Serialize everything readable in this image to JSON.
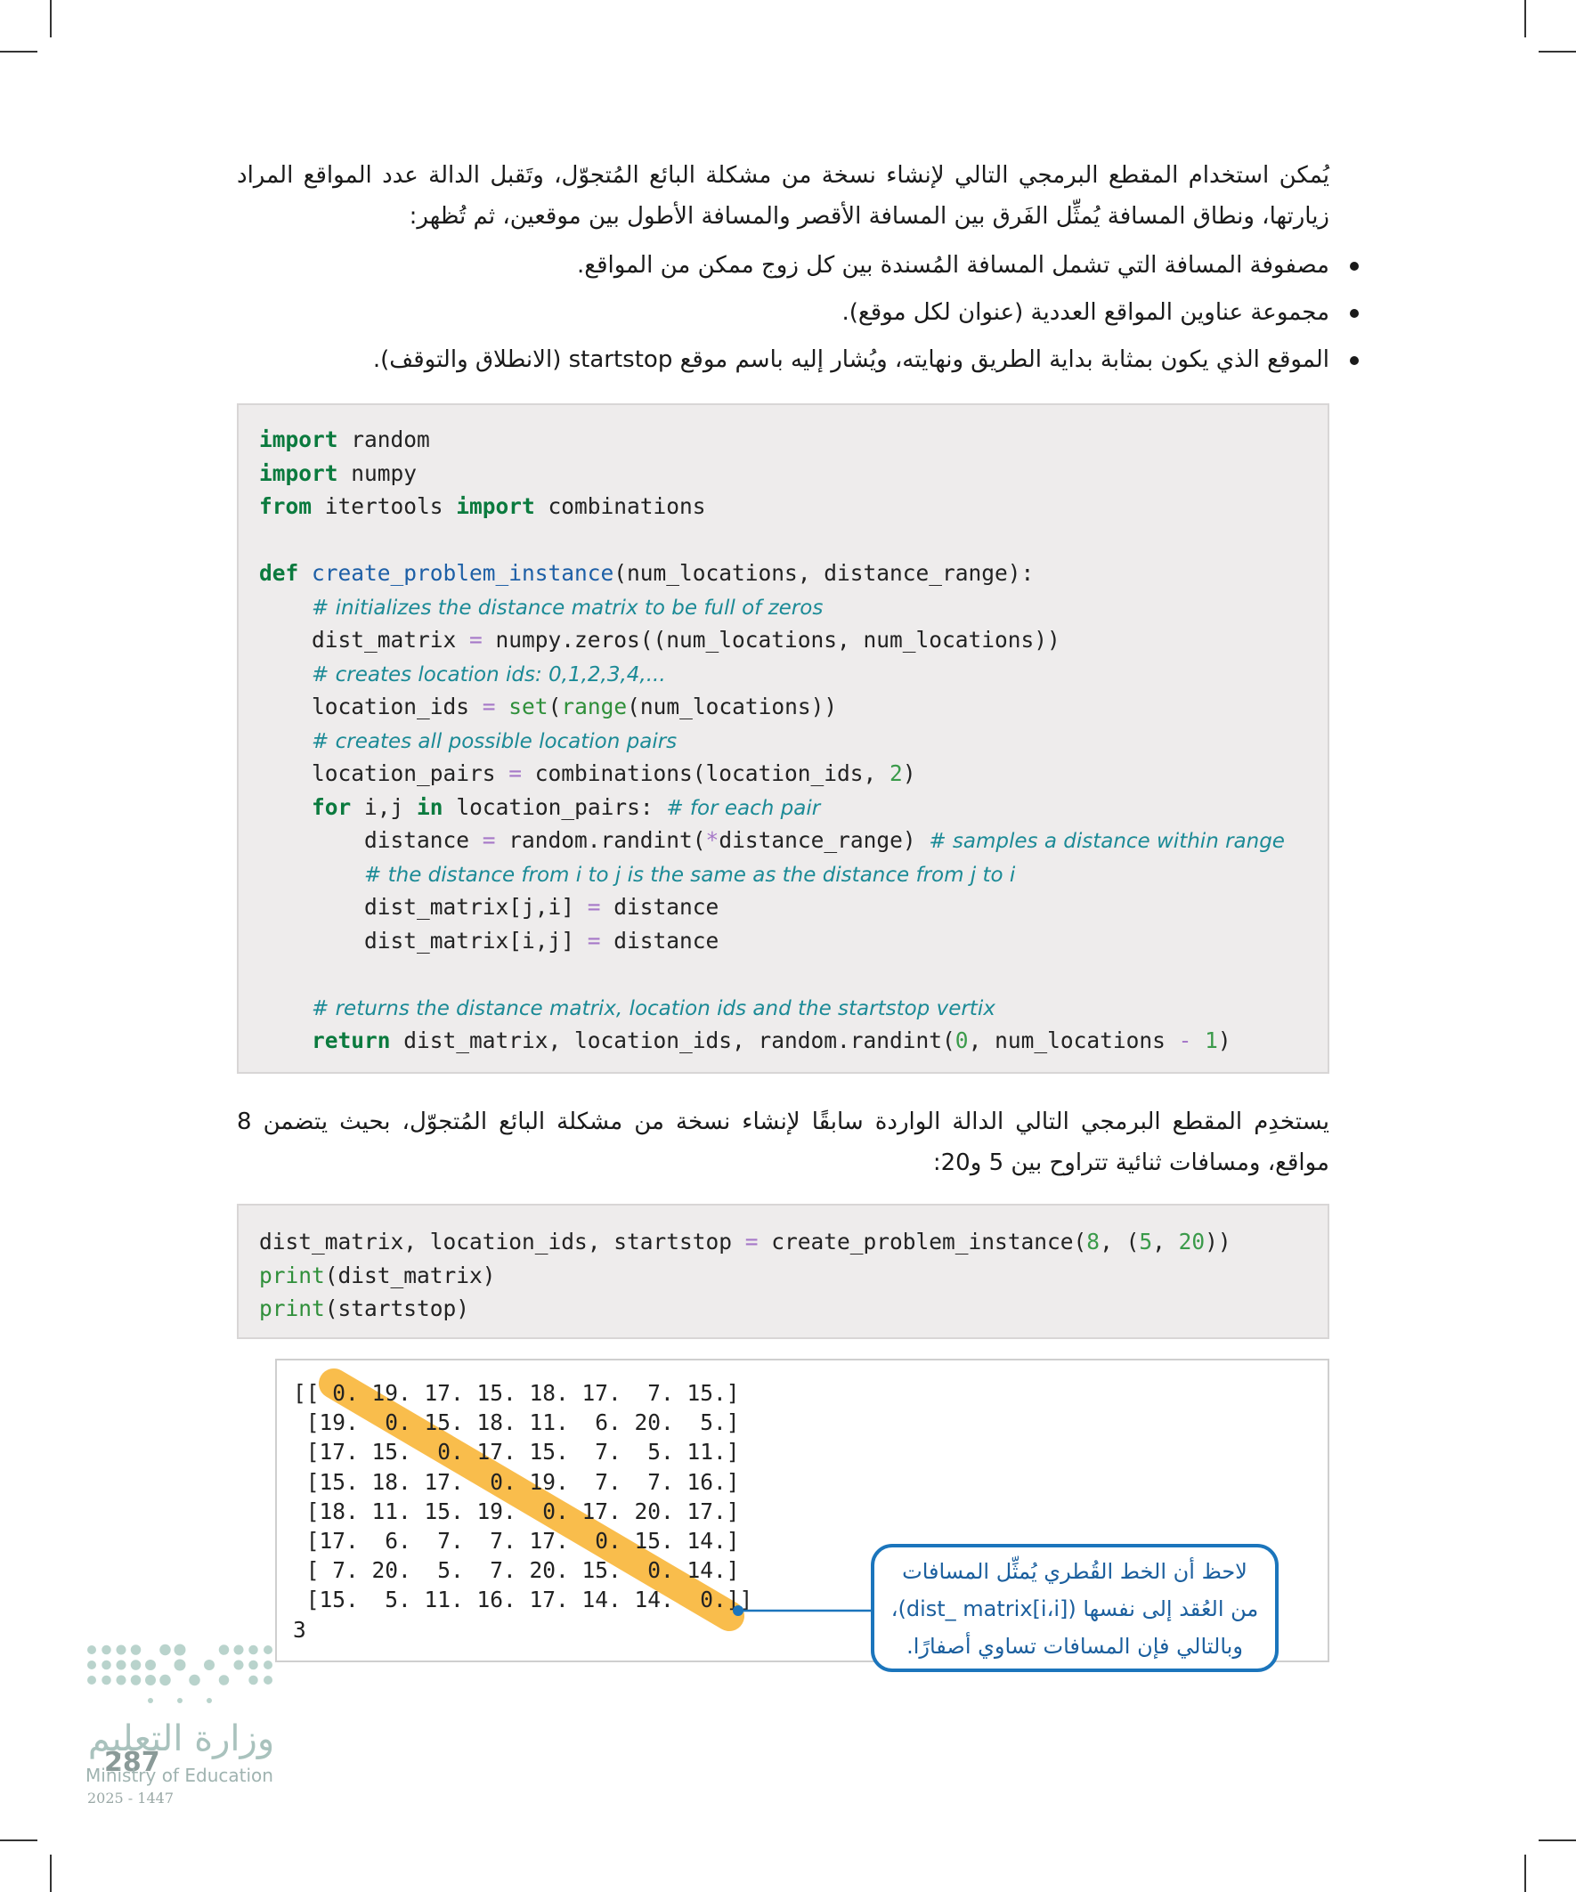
{
  "paragraph_1": "يُمكن استخدام المقطع البرمجي التالي لإنشاء نسخة من مشكلة البائع المُتجوّل، وتَقبل الدالة عدد المواقع المراد زيارتها، ونطاق المسافة يُمثِّل الفَرق بين المسافة الأقصر والمسافة الأطول بين موقعين، ثم تُظهر:",
  "bullets": [
    "مصفوفة المسافة التي تشمل المسافة المُسندة بين كل زوج ممكن من المواقع.",
    "مجموعة عناوين المواقع العددية (عنوان لكل موقع).",
    "الموقع الذي يكون بمثابة بداية الطريق ونهايته، ويُشار إليه باسم موقع startstop (الانطلاق والتوقف)."
  ],
  "code_1": {
    "blocks": [
      [
        [
          {
            "text": "import",
            "color": "#0b7a3e",
            "bold": true
          },
          " random"
        ],
        [
          {
            "text": "import",
            "color": "#0b7a3e",
            "bold": true
          },
          " numpy"
        ],
        [
          {
            "text": "from",
            "color": "#0b7a3e",
            "bold": true
          },
          " itertools ",
          {
            "text": "import",
            "color": "#0b7a3e",
            "bold": true
          },
          " combinations"
        ]
      ],
      [
        [
          {
            "text": "def",
            "color": "#0b7a3e",
            "bold": true
          },
          " ",
          {
            "text": "create_problem_instance",
            "color": "#1d5fa6"
          },
          "(num_locations, distance_range):"
        ],
        [
          "    ",
          {
            "text": "# initializes the distance matrix to be full of zeros",
            "color": "#1b8a96",
            "italic": true
          }
        ],
        [
          "    dist_matrix ",
          {
            "text": "=",
            "color": "#a678c8"
          },
          " numpy.zeros((num_locations, num_locations))"
        ],
        [
          "    ",
          {
            "text": "# creates location ids: 0,1,2,3,4,...",
            "color": "#1b8a96",
            "italic": true
          }
        ],
        [
          "    location_ids ",
          {
            "text": "=",
            "color": "#a678c8"
          },
          " ",
          {
            "text": "set",
            "color": "#2f8f3a"
          },
          "(",
          {
            "text": "range",
            "color": "#2f8f3a"
          },
          "(num_locations))"
        ],
        [
          "    ",
          {
            "text": "# creates all possible location pairs",
            "color": "#1b8a96",
            "italic": true
          }
        ],
        [
          "    location_pairs ",
          {
            "text": "=",
            "color": "#a678c8"
          },
          " combinations(location_ids, ",
          {
            "text": "2",
            "color": "#3a9a4a"
          },
          ")"
        ],
        [
          "    ",
          {
            "text": "for",
            "color": "#0b7a3e",
            "bold": true
          },
          " i,j ",
          {
            "text": "in",
            "color": "#0b7a3e",
            "bold": true
          },
          " location_pairs: ",
          {
            "text": "# for each pair",
            "color": "#1b8a96",
            "italic": true
          }
        ],
        [
          "        distance ",
          {
            "text": "=",
            "color": "#a678c8"
          },
          " random.randint(",
          {
            "text": "*",
            "color": "#a678c8"
          },
          "distance_range) ",
          {
            "text": "# samples a distance within range",
            "color": "#1b8a96",
            "italic": true
          }
        ],
        [
          "        ",
          {
            "text": "# the distance from i to j is the same as the distance from j to i",
            "color": "#1b8a96",
            "italic": true
          }
        ],
        [
          "        dist_matrix[j,i] ",
          {
            "text": "=",
            "color": "#a678c8"
          },
          " distance"
        ],
        [
          "        dist_matrix[i,j] ",
          {
            "text": "=",
            "color": "#a678c8"
          },
          " distance"
        ]
      ],
      [
        [
          "    ",
          {
            "text": "# returns the distance matrix, location ids and the startstop vertix",
            "color": "#1b8a96",
            "italic": true
          }
        ],
        [
          "    ",
          {
            "text": "return",
            "color": "#0b7a3e",
            "bold": true
          },
          " dist_matrix, location_ids, random.randint(",
          {
            "text": "0",
            "color": "#3a9a4a"
          },
          ", num_locations ",
          {
            "text": "-",
            "color": "#a678c8"
          },
          " ",
          {
            "text": "1",
            "color": "#3a9a4a"
          },
          ")"
        ]
      ]
    ]
  },
  "paragraph_2": "يستخدِم المقطع البرمجي التالي الدالة الواردة سابقًا لإنشاء نسخة من مشكلة البائع المُتجوّل، بحيث يتضمن 8 مواقع، ومسافات ثنائية تتراوح بين 5 و20:",
  "code_2": {
    "lines": [
      [
        "dist_matrix, location_ids, startstop ",
        {
          "text": "=",
          "color": "#a678c8"
        },
        " create_problem_instance(",
        {
          "text": "8",
          "color": "#3a9a4a"
        },
        ", (",
        {
          "text": "5",
          "color": "#3a9a4a"
        },
        ", ",
        {
          "text": "20",
          "color": "#3a9a4a"
        },
        "))"
      ],
      [
        {
          "text": "print",
          "color": "#2f8f3a"
        },
        "(dist_matrix)"
      ],
      [
        {
          "text": "print",
          "color": "#2f8f3a"
        },
        "(startstop)"
      ]
    ]
  },
  "output": {
    "lines": [
      "[[ 0. 19. 17. 15. 18. 17.  7. 15.]",
      " [19.  0. 15. 18. 11.  6. 20.  5.]",
      " [17. 15.  0. 17. 15.  7.  5. 11.]",
      " [15. 18. 17.  0. 19.  7.  7. 16.]",
      " [18. 11. 15. 19.  0. 17. 20. 17.]",
      " [17.  6.  7.  7. 17.  0. 15. 14.]",
      " [ 7. 20.  5.  7. 20. 15.  0. 14.]",
      " [15.  5. 11. 16. 17. 14. 14.  0.]]",
      "3"
    ]
  },
  "callout": {
    "lines": [
      "لاحظ أن الخط القُطري يُمثِّل المسافات",
      "من العُقد إلى نفسها (dist_ matrix[i،i])،",
      "وبالتالي فإن المسافات تساوي أصفارًا."
    ]
  },
  "footer": {
    "ministry_ar": "وزارة التعليم",
    "ministry_en": "Ministry of Education",
    "years": "2025 - 1447",
    "page_number": "287"
  }
}
